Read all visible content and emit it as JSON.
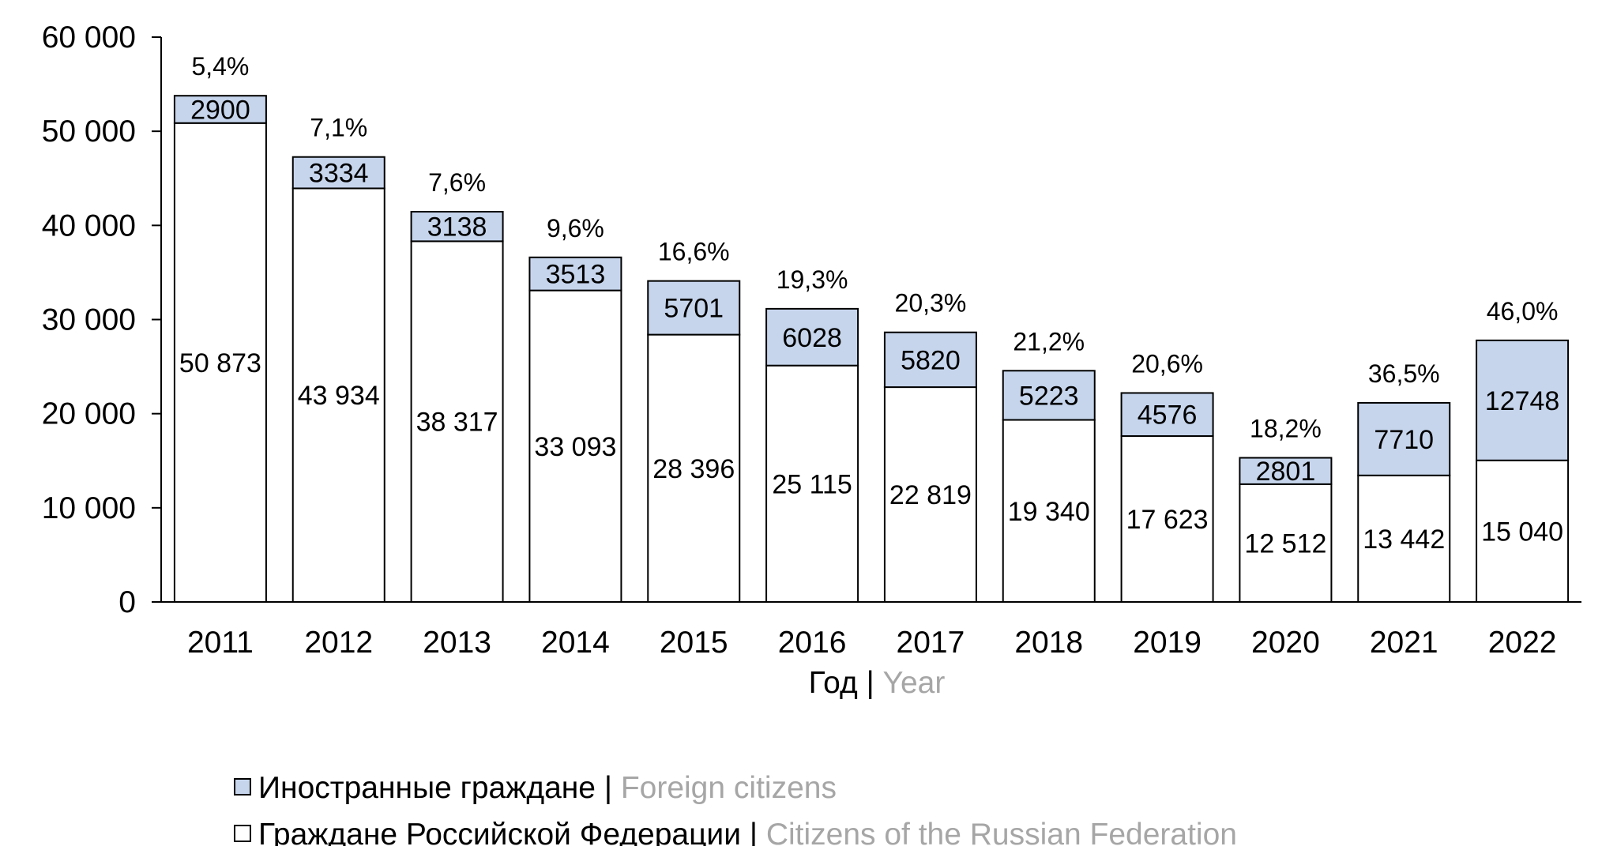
{
  "chart_data": {
    "type": "bar",
    "stacked": true,
    "categories": [
      "2011",
      "2012",
      "2013",
      "2014",
      "2015",
      "2016",
      "2017",
      "2018",
      "2019",
      "2020",
      "2021",
      "2022"
    ],
    "series": [
      {
        "name": "Граждане Российской Федерации",
        "name_en": "Citizens of the Russian Federation",
        "color": "#ffffff",
        "values": [
          50873,
          43934,
          38317,
          33093,
          28396,
          25115,
          22819,
          19340,
          17623,
          12512,
          13442,
          15040
        ],
        "labels": [
          "50 873",
          "43 934",
          "38 317",
          "33 093",
          "28 396",
          "25 115",
          "22 819",
          "19 340",
          "17 623",
          "12 512",
          "13 442",
          "15 040"
        ]
      },
      {
        "name": "Иностранные граждане",
        "name_en": "Foreign citizens",
        "color": "#c6d5ec",
        "values": [
          2900,
          3334,
          3138,
          3513,
          5701,
          6028,
          5820,
          5223,
          4576,
          2801,
          7710,
          12748
        ],
        "labels": [
          "2900",
          "3334",
          "3138",
          "3513",
          "5701",
          "6028",
          "5820",
          "5223",
          "4576",
          "2801",
          "7710",
          "12748"
        ]
      }
    ],
    "top_labels": [
      "5,4%",
      "7,1%",
      "7,6%",
      "9,6%",
      "16,6%",
      "19,3%",
      "20,3%",
      "21,2%",
      "20,6%",
      "18,2%",
      "36,5%",
      "46,0%"
    ],
    "xlabel": {
      "ru": "Год",
      "sep": " | ",
      "en": "Year"
    },
    "ylim": [
      0,
      60000
    ],
    "yticks": [
      0,
      10000,
      20000,
      30000,
      40000,
      50000,
      60000
    ],
    "ytick_labels": [
      "0",
      "10 000",
      "20 000",
      "30 000",
      "40 000",
      "50 000",
      "60 000"
    ],
    "grid": false,
    "legend_position": "bottom",
    "legend_sep": " | ",
    "colors": {
      "axis": "#000000",
      "text": "#000000",
      "secondary_text": "#a6a6a6",
      "bar_outline": "#000000"
    }
  }
}
